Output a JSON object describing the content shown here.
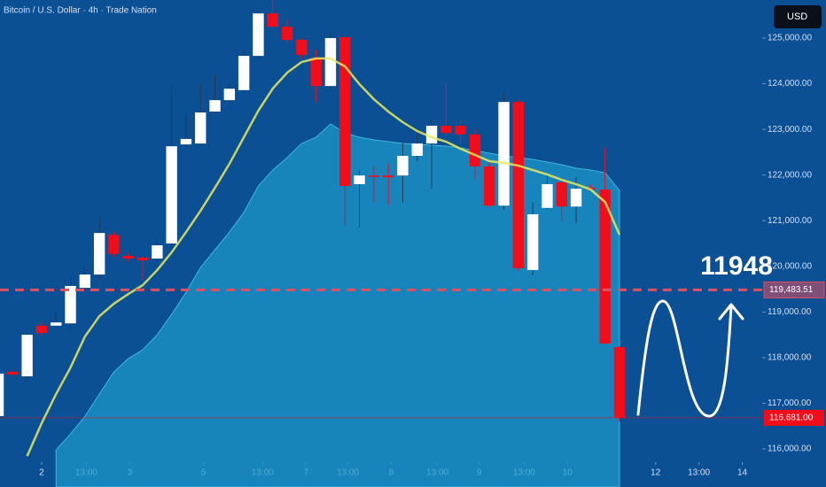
{
  "chart_data": {
    "type": "candlestick",
    "title": "Bitcoin / U.S. Dollar · 4h · Trade Nation",
    "open": [
      116720,
      117690,
      117590,
      118700,
      118700,
      118750,
      119530,
      119820,
      120690,
      120230,
      120190,
      120170,
      120500,
      122670,
      122690,
      123390,
      123640,
      123860,
      124610,
      125540,
      125250,
      124960,
      124570,
      123950,
      125020,
      121800,
      121990,
      121990,
      121990,
      122420,
      122690,
      123080,
      123080,
      122890,
      122190,
      121330,
      123600,
      119920,
      121280,
      121840,
      121310,
      121720,
      121680,
      118230
    ],
    "high": [
      117700,
      117700,
      118560,
      118780,
      119000,
      119780,
      119980,
      121080,
      120760,
      120300,
      120230,
      120600,
      123950,
      123300,
      124000,
      124200,
      124000,
      124700,
      125600,
      125830,
      125400,
      125000,
      124750,
      125150,
      125050,
      122100,
      122200,
      122250,
      122700,
      122950,
      123200,
      124000,
      123200,
      123000,
      122300,
      123800,
      123650,
      121400,
      122000,
      121950,
      121950,
      121800,
      122600,
      118250
    ],
    "low": [
      116520,
      117600,
      117500,
      118480,
      118650,
      118600,
      119480,
      119750,
      120200,
      120100,
      119700,
      120100,
      120400,
      122600,
      122650,
      123350,
      123600,
      123800,
      124550,
      125200,
      124900,
      124550,
      123600,
      123900,
      120900,
      120850,
      121400,
      121350,
      121400,
      122300,
      121700,
      122850,
      122700,
      121900,
      121300,
      121250,
      119900,
      119800,
      121250,
      121000,
      120950,
      121650,
      118300,
      116600
    ],
    "close": [
      117650,
      117630,
      118500,
      118540,
      118770,
      119570,
      119820,
      120730,
      120270,
      120170,
      120130,
      120460,
      122630,
      122790,
      123370,
      123640,
      123890,
      124610,
      125540,
      125250,
      124960,
      124630,
      123950,
      125000,
      121760,
      121990,
      121970,
      121950,
      122420,
      122690,
      123080,
      122920,
      122890,
      122190,
      121330,
      123600,
      119960,
      121140,
      121800,
      121310,
      121700,
      121700,
      118310,
      116681
    ],
    "up_color": "#ffffff",
    "down_color": "#f20d1a",
    "series": [
      {
        "type": "area",
        "color": "#1c97c8",
        "values": [
          null,
          null,
          null,
          null,
          115979,
          116328,
          116716,
          117201,
          117686,
          117977,
          118171,
          118501,
          118947,
          119432,
          119975,
          120363,
          120751,
          121178,
          121760,
          122109,
          122381,
          122691,
          122827,
          123118,
          122924,
          122827,
          122769,
          122730,
          122691,
          122672,
          122653,
          122633,
          122594,
          122536,
          122478,
          122420,
          122381,
          122342,
          122284,
          122226,
          122148,
          122109,
          122051,
          121663
        ]
      },
      {
        "type": "line",
        "color": "#eaea5a",
        "values": [
          null,
          null,
          115843,
          116561,
          117201,
          117783,
          118462,
          118908,
          119180,
          119393,
          119587,
          119917,
          120305,
          120751,
          121217,
          121721,
          122245,
          122827,
          123409,
          123894,
          124243,
          124476,
          124554,
          124554,
          124379,
          123991,
          123661,
          123390,
          123157,
          122963,
          122827,
          122730,
          122575,
          122439,
          122303,
          122265,
          122206,
          122109,
          122012,
          121896,
          121799,
          121683,
          121411,
          120693
        ]
      }
    ],
    "xlim": [
      0.12,
      52.88
    ],
    "ylim": [
      115166,
      125834
    ],
    "xticks": [
      {
        "value": 3,
        "label": "2"
      },
      {
        "value": 6.1,
        "label": "13:00"
      },
      {
        "value": 9.1,
        "label": "3"
      },
      {
        "value": 14.2,
        "label": "5"
      },
      {
        "value": 18.3,
        "label": "13:00"
      },
      {
        "value": 21.3,
        "label": "7"
      },
      {
        "value": 24.2,
        "label": "13:00"
      },
      {
        "value": 27.2,
        "label": "8"
      },
      {
        "value": 30.4,
        "label": "13:00"
      },
      {
        "value": 33.3,
        "label": "9"
      },
      {
        "value": 36.4,
        "label": "13:00"
      },
      {
        "value": 39.4,
        "label": "10"
      },
      {
        "value": 45.5,
        "label": "12"
      },
      {
        "value": 48.5,
        "label": "13:00"
      },
      {
        "value": 51.5,
        "label": "14"
      }
    ],
    "yticks": [
      {
        "value": 116000,
        "label": "116,000.00"
      },
      {
        "value": 117000,
        "label": "117,000.00"
      },
      {
        "value": 118000,
        "label": "118,000.00"
      },
      {
        "value": 119000,
        "label": "119,000.00"
      },
      {
        "value": 120000,
        "label": "120,000.00"
      },
      {
        "value": 121000,
        "label": "121,000.00"
      },
      {
        "value": 122000,
        "label": "122,000.00"
      },
      {
        "value": 123000,
        "label": "123,000.00"
      },
      {
        "value": 124000,
        "label": "124,000.00"
      },
      {
        "value": 125000,
        "label": "125,000.00"
      }
    ],
    "level_line": {
      "value": 119483.51,
      "label": "119,483.51",
      "color": "#e0505f"
    },
    "last_price": {
      "value": 116681,
      "label": "116,681.00",
      "color": "#f20d1a"
    },
    "annotation": "11948"
  },
  "toolbar": {
    "currency": "USD"
  }
}
